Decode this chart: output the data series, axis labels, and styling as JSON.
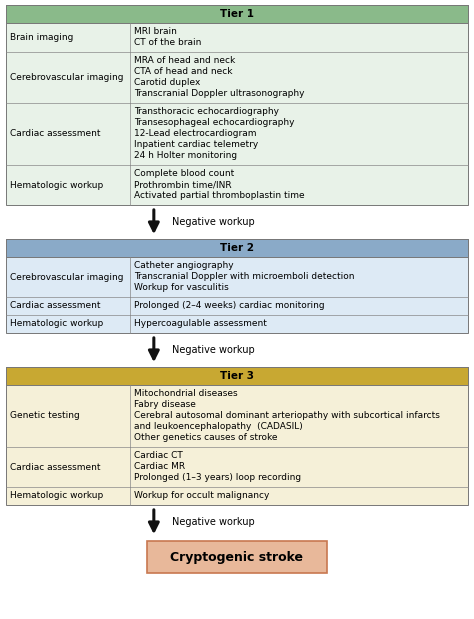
{
  "tier1": {
    "header": "Tier 1",
    "header_color": "#8aba8a",
    "bg_color": "#e8f2e8",
    "rows": [
      {
        "left": "Brain imaging",
        "right": [
          "MRI brain",
          "CT of the brain"
        ]
      },
      {
        "left": "Cerebrovascular imaging",
        "right": [
          "MRA of head and neck",
          "CTA of head and neck",
          "Carotid duplex",
          "Transcranial Doppler ultrasonography"
        ]
      },
      {
        "left": "Cardiac assessment",
        "right": [
          "Transthoracic echocardiography",
          "Transesophageal echocardiography",
          "12-Lead electrocardiogram",
          "Inpatient cardiac telemetry",
          "24 h Holter monitoring"
        ]
      },
      {
        "left": "Hematologic workup",
        "right": [
          "Complete blood count",
          "Prothrombin time/INR",
          "Activated partial thromboplastin time"
        ]
      }
    ]
  },
  "tier2": {
    "header": "Tier 2",
    "header_color": "#8aaac8",
    "bg_color": "#ddeaf5",
    "rows": [
      {
        "left": "Cerebrovascular imaging",
        "right": [
          "Catheter angiography",
          "Transcranial Doppler with microemboli detection",
          "Workup for vasculitis"
        ]
      },
      {
        "left": "Cardiac assessment",
        "right": [
          "Prolonged (2–4 weeks) cardiac monitoring"
        ]
      },
      {
        "left": "Hematologic workup",
        "right": [
          "Hypercoagulable assessment"
        ]
      }
    ]
  },
  "tier3": {
    "header": "Tier 3",
    "header_color": "#c8a832",
    "bg_color": "#f5f0d8",
    "rows": [
      {
        "left": "Genetic testing",
        "right": [
          "Mitochondrial diseases",
          "Fabry disease",
          "Cerebral autosomal dominant arteriopathy with subcortical infarcts",
          "and leukoencephalopathy  (CADASIL)",
          "Other genetics causes of stroke"
        ]
      },
      {
        "left": "Cardiac assessment",
        "right": [
          "Cardiac CT",
          "Cardiac MR",
          "Prolonged (1–3 years) loop recording"
        ]
      },
      {
        "left": "Hematologic workup",
        "right": [
          "Workup for occult malignancy"
        ]
      }
    ]
  },
  "final_box": {
    "text": "Cryptogenic stroke",
    "bg_color": "#e8b89a",
    "border_color": "#c87850"
  },
  "negative_workup": "Negative workup",
  "arrow_color": "#111111"
}
